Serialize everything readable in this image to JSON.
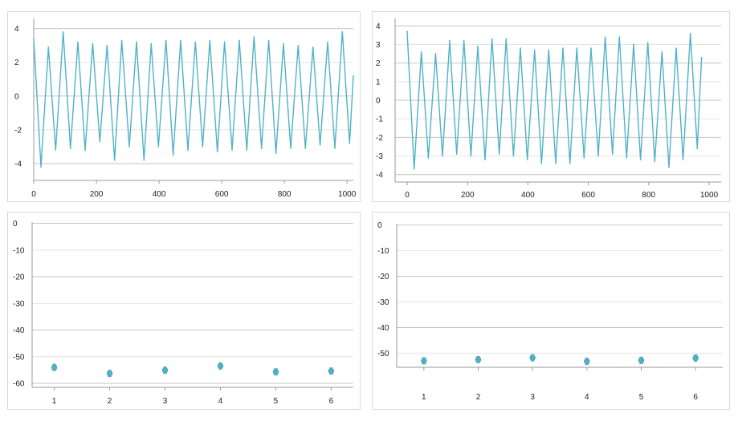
{
  "chart_data": [
    {
      "type": "line",
      "title": "",
      "xlabel": "",
      "ylabel": "",
      "xlim": [
        0,
        1020
      ],
      "ylim": [
        -5,
        4.6
      ],
      "xticks": [
        0,
        200,
        400,
        600,
        800,
        1000
      ],
      "yticks": [
        4,
        2,
        0,
        -2,
        -4
      ],
      "grid": true,
      "legend": "none",
      "color": "#4fb3c6",
      "series": [
        {
          "x": [
            0,
            23,
            47,
            70,
            94,
            117,
            141,
            164,
            188,
            211,
            234,
            258,
            281,
            305,
            328,
            352,
            375,
            398,
            422,
            445,
            469,
            492,
            516,
            539,
            562,
            586,
            609,
            633,
            656,
            680,
            703,
            727,
            750,
            773,
            797,
            820,
            844,
            867,
            891,
            914,
            938,
            961,
            985,
            1008,
            1020
          ],
          "y": [
            3.4,
            -4.2,
            2.9,
            -3.2,
            3.8,
            -3.1,
            3.2,
            -3.2,
            3.1,
            -2.7,
            3.0,
            -3.8,
            3.3,
            -3.0,
            3.2,
            -3.8,
            3.1,
            -3.0,
            3.3,
            -3.5,
            3.3,
            -3.2,
            3.2,
            -3.0,
            3.3,
            -3.3,
            3.2,
            -3.2,
            3.3,
            -3.2,
            3.5,
            -3.1,
            3.3,
            -3.4,
            3.1,
            -3.1,
            3.0,
            -3.1,
            2.9,
            -2.9,
            3.2,
            -3.1,
            3.8,
            -2.8,
            1.2
          ]
        }
      ]
    },
    {
      "type": "line",
      "title": "",
      "xlabel": "",
      "ylabel": "",
      "xlim": [
        -40,
        1040
      ],
      "ylim": [
        -4.4,
        4.4
      ],
      "xticks": [
        0,
        200,
        400,
        600,
        800,
        1000
      ],
      "yticks": [
        4,
        3,
        2,
        1,
        0,
        -1,
        -2,
        -3,
        -4
      ],
      "grid": true,
      "legend": "none",
      "color": "#4fb3c6",
      "series": [
        {
          "x": [
            0,
            23,
            47,
            70,
            94,
            117,
            141,
            164,
            188,
            211,
            234,
            258,
            281,
            305,
            328,
            352,
            375,
            398,
            422,
            445,
            469,
            492,
            516,
            539,
            562,
            586,
            609,
            633,
            656,
            680,
            703,
            727,
            750,
            773,
            797,
            820,
            844,
            867,
            891,
            914,
            938,
            961,
            975
          ],
          "y": [
            3.7,
            -3.7,
            2.6,
            -3.1,
            2.5,
            -3.0,
            3.2,
            -2.9,
            3.2,
            -3.0,
            2.9,
            -3.2,
            3.3,
            -2.9,
            3.3,
            -3.0,
            2.8,
            -3.2,
            2.7,
            -3.4,
            2.7,
            -3.4,
            2.8,
            -3.4,
            2.8,
            -3.1,
            2.8,
            -3.0,
            3.4,
            -2.9,
            3.4,
            -3.1,
            3.0,
            -3.2,
            3.1,
            -3.3,
            2.6,
            -3.6,
            2.8,
            -3.2,
            3.6,
            -2.6,
            2.3
          ]
        }
      ]
    },
    {
      "type": "scatter",
      "title": "",
      "xlabel": "",
      "ylabel": "",
      "xlim": [
        0.6,
        6.4
      ],
      "ylim": [
        -61.5,
        0.5
      ],
      "xticks": [
        1,
        2,
        3,
        4,
        5,
        6
      ],
      "yticks": [
        0,
        -10,
        -20,
        -30,
        -40,
        -50,
        -60
      ],
      "grid": true,
      "legend": "none",
      "color": "#4fb3c6",
      "series": [
        {
          "x": [
            1,
            2,
            3,
            4,
            5,
            6
          ],
          "y": [
            -54.0,
            -56.3,
            -55.1,
            -53.5,
            -55.7,
            -55.4
          ]
        }
      ]
    },
    {
      "type": "scatter",
      "title": "",
      "xlabel": "",
      "ylabel": "",
      "xlim": [
        0.5,
        6.5
      ],
      "ylim": [
        -55.5,
        0.5
      ],
      "xticks": [
        1,
        2,
        3,
        4,
        5,
        6
      ],
      "yticks": [
        0,
        -10,
        -20,
        -30,
        -40,
        -50
      ],
      "grid": true,
      "legend": "none",
      "color": "#4fb3c6",
      "series": [
        {
          "x": [
            1,
            2,
            3,
            4,
            5,
            6
          ],
          "y": [
            -53.0,
            -52.5,
            -51.8,
            -53.2,
            -52.8,
            -51.9
          ]
        }
      ]
    }
  ]
}
